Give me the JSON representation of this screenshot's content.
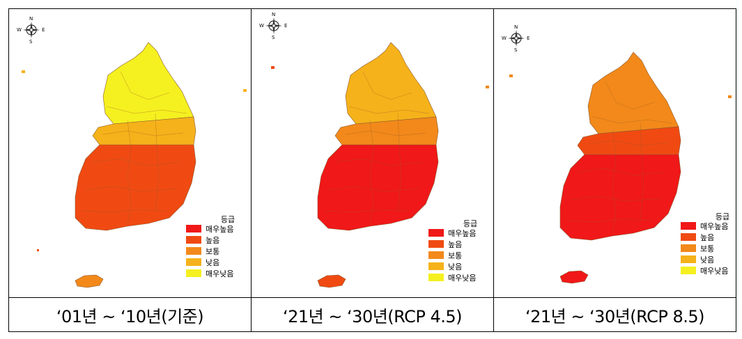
{
  "legend": {
    "title": "등급",
    "classes": [
      {
        "label": "매우높음",
        "color": "#f01818"
      },
      {
        "label": "높음",
        "color": "#f04a12"
      },
      {
        "label": "보통",
        "color": "#f2891a"
      },
      {
        "label": "낮음",
        "color": "#f5b21a"
      },
      {
        "label": "매우낮음",
        "color": "#f5f020"
      }
    ]
  },
  "compass": {
    "n": "N",
    "s": "S",
    "e": "E",
    "w": "W"
  },
  "panels": [
    {
      "caption": "‘01년 ~ ‘10년(기준)",
      "north_class": "매우낮음",
      "center_class": "낮음",
      "south_class": "높음",
      "jeju_class": "보통"
    },
    {
      "caption": "‘21년 ~ ‘30년(RCP 4.5)",
      "north_class": "낮음",
      "center_class": "보통",
      "south_class": "매우높음",
      "jeju_class": "높음"
    },
    {
      "caption": "‘21년 ~ ‘30년(RCP 8.5)",
      "north_class": "보통",
      "center_class": "높음",
      "south_class": "매우높음",
      "jeju_class": "매우높음"
    }
  ]
}
